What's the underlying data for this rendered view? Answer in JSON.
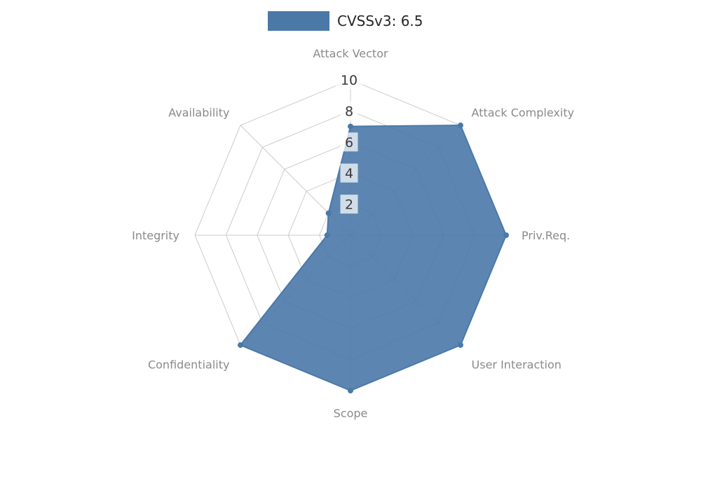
{
  "legend": {
    "label": "CVSSv3: 6.5",
    "swatch_color": "#4a79a8"
  },
  "chart_data": {
    "type": "radar",
    "title": "CVSSv3: 6.5",
    "categories": [
      "Attack Vector",
      "Attack Complexity",
      "Priv.Req.",
      "User Interaction",
      "Scope",
      "Confidentiality",
      "Integrity",
      "Availability"
    ],
    "series": [
      {
        "name": "CVSSv3: 6.5",
        "values": [
          7,
          10,
          10,
          10,
          10,
          10,
          1.5,
          2
        ],
        "color": "#4a79a8",
        "fill_opacity": 0.9
      }
    ],
    "radial_ticks": [
      2,
      4,
      6,
      8,
      10
    ],
    "rlim": [
      0,
      10
    ],
    "grid": true,
    "legend_position": "top-center"
  },
  "colors": {
    "background": "#ffffff",
    "grid": "#cccccc",
    "axis_label": "#8a8a8a",
    "tick_label": "#3a3a3a",
    "tick_box": "rgba(255,255,255,0.72)",
    "accent": "#4a79a8"
  }
}
